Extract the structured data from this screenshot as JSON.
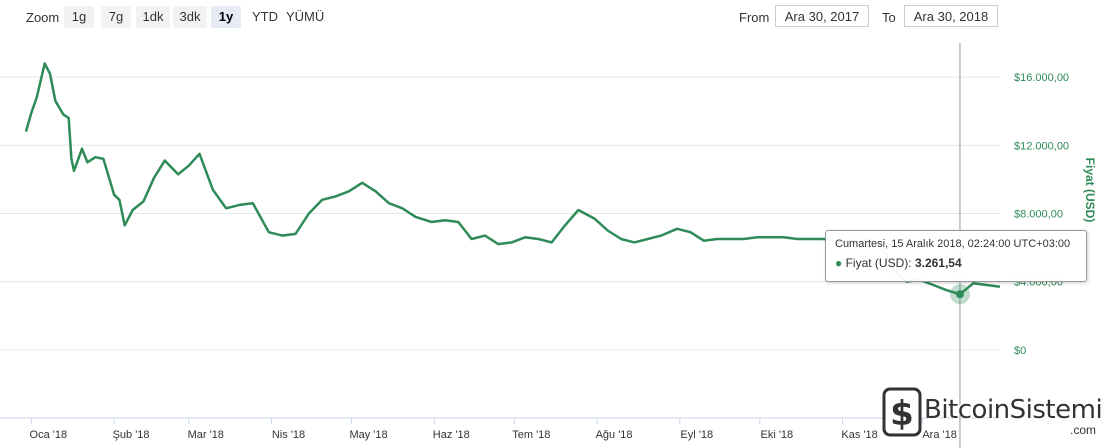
{
  "toolbar": {
    "zoom_label": "Zoom",
    "buttons": [
      "1g",
      "7g",
      "1dk",
      "3dk",
      "1y",
      "YTD",
      "YÜMÜ"
    ],
    "active_button": "1y",
    "from_label": "From",
    "from_value": "Ara 30, 2017",
    "to_label": "To",
    "to_value": "Ara 30, 2018"
  },
  "tooltip": {
    "date": "Cumartesi, 15 Aralık 2018, 02:24:00 UTC+03:00",
    "series_label": "Fiyat (USD):",
    "value": "3.261,54"
  },
  "logo": {
    "name": "BitcoinSistemi",
    "suffix": ".com"
  },
  "colors": {
    "line": "#2e8b57",
    "grid": "#e6e6e6",
    "crosshair": "#999999"
  },
  "chart_data": {
    "type": "line",
    "ylabel": "Fiyat (USD)",
    "ylim": [
      -4000,
      18000
    ],
    "yticks": [
      {
        "value": 0,
        "label": "$0"
      },
      {
        "value": 4000,
        "label": "$4.000,00"
      },
      {
        "value": 8000,
        "label": "$8.000,00"
      },
      {
        "value": 12000,
        "label": "$12.000,00"
      },
      {
        "value": 16000,
        "label": "$16.000,00"
      }
    ],
    "xticks": [
      "Oca '18",
      "Şub '18",
      "Mar '18",
      "Nis '18",
      "May '18",
      "Haz '18",
      "Tem '18",
      "Ağu '18",
      "Eyl '18",
      "Eki '18",
      "Kas '18",
      "Ara '18"
    ],
    "grid": true,
    "series": [
      {
        "name": "Fiyat (USD)",
        "x": [
          "2017-12-30",
          "2018-01-01",
          "2018-01-03",
          "2018-01-06",
          "2018-01-08",
          "2018-01-10",
          "2018-01-13",
          "2018-01-15",
          "2018-01-16",
          "2018-01-17",
          "2018-01-20",
          "2018-01-22",
          "2018-01-25",
          "2018-01-28",
          "2018-02-01",
          "2018-02-03",
          "2018-02-05",
          "2018-02-08",
          "2018-02-12",
          "2018-02-16",
          "2018-02-20",
          "2018-02-25",
          "2018-03-01",
          "2018-03-05",
          "2018-03-10",
          "2018-03-15",
          "2018-03-20",
          "2018-03-25",
          "2018-03-31",
          "2018-04-05",
          "2018-04-10",
          "2018-04-15",
          "2018-04-20",
          "2018-04-25",
          "2018-04-30",
          "2018-05-05",
          "2018-05-10",
          "2018-05-15",
          "2018-05-20",
          "2018-05-25",
          "2018-05-31",
          "2018-06-05",
          "2018-06-10",
          "2018-06-15",
          "2018-06-20",
          "2018-06-25",
          "2018-06-30",
          "2018-07-05",
          "2018-07-10",
          "2018-07-15",
          "2018-07-20",
          "2018-07-25",
          "2018-07-31",
          "2018-08-05",
          "2018-08-10",
          "2018-08-15",
          "2018-08-20",
          "2018-08-25",
          "2018-08-31",
          "2018-09-05",
          "2018-09-10",
          "2018-09-15",
          "2018-09-20",
          "2018-09-25",
          "2018-09-30",
          "2018-10-05",
          "2018-10-10",
          "2018-10-15",
          "2018-10-20",
          "2018-10-25",
          "2018-10-31",
          "2018-11-05",
          "2018-11-10",
          "2018-11-14",
          "2018-11-17",
          "2018-11-20",
          "2018-11-25",
          "2018-11-30",
          "2018-12-05",
          "2018-12-10",
          "2018-12-15",
          "2018-12-20",
          "2018-12-25",
          "2018-12-30"
        ],
        "values": [
          12800,
          13900,
          14800,
          16800,
          16200,
          14600,
          13800,
          13600,
          11200,
          10500,
          11800,
          11000,
          11300,
          11200,
          9100,
          8800,
          7300,
          8200,
          8700,
          10100,
          11100,
          10300,
          10800,
          11500,
          9400,
          8300,
          8500,
          8600,
          6900,
          6700,
          6800,
          8000,
          8800,
          9000,
          9300,
          9800,
          9300,
          8600,
          8300,
          7800,
          7500,
          7600,
          7500,
          6500,
          6700,
          6200,
          6300,
          6600,
          6500,
          6300,
          7300,
          8200,
          7700,
          7000,
          6500,
          6300,
          6500,
          6700,
          7100,
          6900,
          6400,
          6500,
          6500,
          6500,
          6600,
          6600,
          6600,
          6500,
          6500,
          6500,
          6300,
          6400,
          6400,
          6300,
          5700,
          4700,
          4000,
          4100,
          3800,
          3500,
          3261.54,
          3900,
          3800,
          3700
        ]
      }
    ]
  }
}
